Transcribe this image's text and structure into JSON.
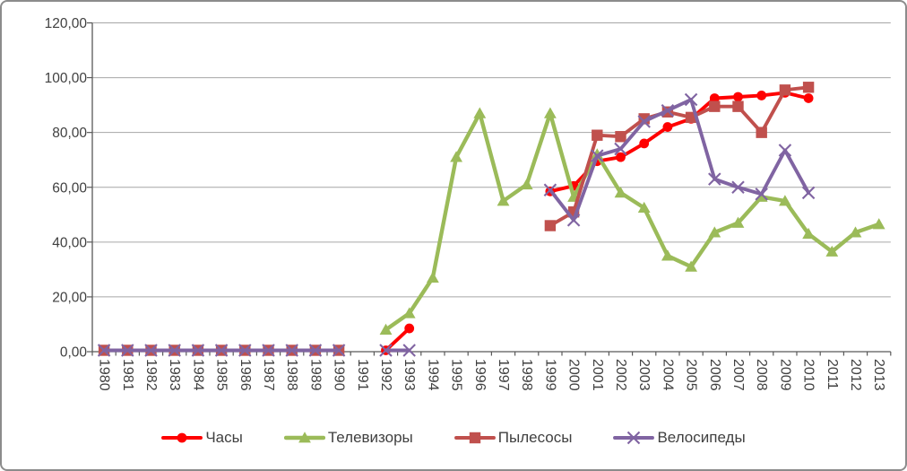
{
  "figure": {
    "background": "#FFFFFF",
    "border_color": "#8C8C8C",
    "text_color": "#404040",
    "gridline_color": "#A6A6A6",
    "axis_color": "#595959"
  },
  "chart_data": {
    "type": "line",
    "title": "",
    "xlabel": "",
    "ylabel": "",
    "legend_position": "bottom",
    "grid": true,
    "y_axis": {
      "min": 0,
      "max": 120,
      "step": 20,
      "tick_labels": [
        "0,00",
        "20,00",
        "40,00",
        "60,00",
        "80,00",
        "100,00",
        "120,00"
      ]
    },
    "categories": [
      "1980",
      "1981",
      "1982",
      "1983",
      "1984",
      "1985",
      "1986",
      "1987",
      "1988",
      "1989",
      "1990",
      "1991",
      "1992",
      "1993",
      "1994",
      "1995",
      "1996",
      "1997",
      "1998",
      "1999",
      "2000",
      "2001",
      "2002",
      "2003",
      "2004",
      "2005",
      "2006",
      "2007",
      "2008",
      "2009",
      "2010",
      "2011",
      "2012",
      "2013"
    ],
    "series": [
      {
        "name": "Часы",
        "color": "#FF0000",
        "marker": "circle",
        "values": [
          null,
          null,
          null,
          null,
          null,
          null,
          null,
          null,
          null,
          null,
          null,
          null,
          0.5,
          8.5,
          null,
          null,
          null,
          null,
          null,
          58.5,
          60.5,
          69.5,
          71,
          76,
          82,
          85,
          92.5,
          93,
          93.5,
          94.5,
          92.5,
          null,
          null,
          null
        ]
      },
      {
        "name": "Телевизоры",
        "color": "#9BBB59",
        "marker": "triangle",
        "values": [
          null,
          null,
          null,
          null,
          null,
          null,
          null,
          null,
          null,
          null,
          null,
          null,
          8,
          14,
          27,
          71,
          87,
          55,
          61,
          87,
          56.5,
          72,
          58,
          52.5,
          35,
          31,
          43.5,
          47,
          56.5,
          55,
          43,
          36.5,
          43.5,
          46.5
        ]
      },
      {
        "name": "Пылесосы",
        "color": "#C0504D",
        "marker": "square",
        "values": [
          0.5,
          0.5,
          0.5,
          0.5,
          0.5,
          0.5,
          0.5,
          0.5,
          0.5,
          0.5,
          0.5,
          null,
          null,
          null,
          null,
          null,
          null,
          null,
          null,
          46,
          51,
          79,
          78.5,
          85,
          87.5,
          85.5,
          89.5,
          89.5,
          80,
          95.5,
          96.5,
          null,
          null,
          null
        ]
      },
      {
        "name": "Велосипеды",
        "color": "#8064A2",
        "marker": "x",
        "values": [
          0.5,
          0.5,
          0.5,
          0.5,
          0.5,
          0.5,
          0.5,
          0.5,
          0.5,
          0.5,
          0.5,
          null,
          0.5,
          0.5,
          null,
          null,
          null,
          null,
          null,
          59,
          48,
          71.5,
          74,
          84,
          88,
          92,
          63,
          60,
          57.5,
          73.5,
          58,
          null,
          null,
          null
        ]
      }
    ]
  }
}
